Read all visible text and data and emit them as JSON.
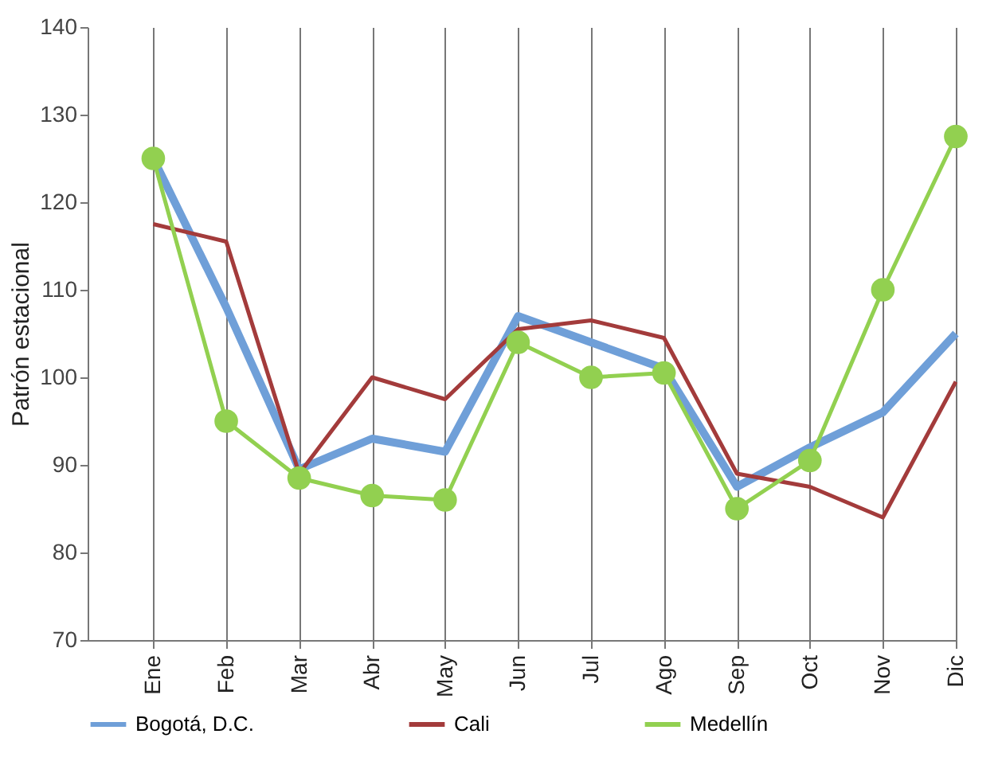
{
  "chart_data": {
    "type": "line",
    "ylabel": "Patrón estacional",
    "categories": [
      "Ene",
      "Feb",
      "Mar",
      "Abr",
      "May",
      "Jun",
      "Jul",
      "Ago",
      "Sep",
      "Oct",
      "Nov",
      "Dic"
    ],
    "series": [
      {
        "name": "Bogotá, D.C.",
        "color": "#6f9fd8",
        "values": [
          125,
          108,
          89.5,
          93,
          91.5,
          107,
          104,
          101,
          87.5,
          92,
          96,
          105
        ]
      },
      {
        "name": "Cali",
        "color": "#a33b3b",
        "values": [
          117.5,
          115.5,
          89,
          100,
          97.5,
          105.5,
          106.5,
          104.5,
          89,
          87.5,
          84,
          99.5
        ]
      },
      {
        "name": "Medellín",
        "color": "#92d050",
        "marker": "circle",
        "values": [
          125,
          95,
          88.5,
          86.5,
          86,
          104,
          100,
          100.5,
          85,
          90.5,
          110,
          127.5
        ]
      }
    ],
    "ylim": [
      70,
      140
    ],
    "yticks": [
      70,
      80,
      90,
      100,
      110,
      120,
      130,
      140
    ],
    "grid": "x",
    "legend": "bottom"
  }
}
